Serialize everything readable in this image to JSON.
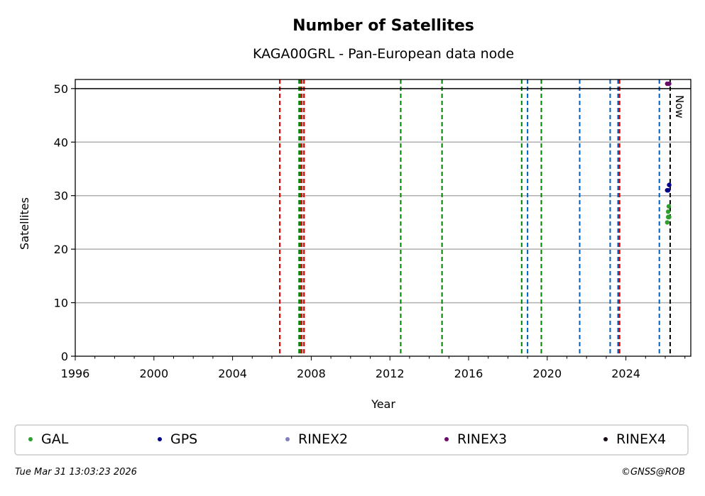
{
  "chart_data": {
    "type": "scatter",
    "title": "Number of Satellites",
    "subtitle": "KAGA00GRL - Pan-European data node",
    "xlabel": "Year",
    "ylabel": "Satellites",
    "xlim": [
      1996,
      2027.3
    ],
    "ylim": [
      0,
      51.7
    ],
    "xticks": [
      1996,
      2000,
      2004,
      2008,
      2012,
      2016,
      2020,
      2024
    ],
    "yticks": [
      0,
      10,
      20,
      30,
      40,
      50
    ],
    "grid": "y",
    "hline": 50,
    "now": {
      "x": 2026.25,
      "label": "Now"
    },
    "vlines": [
      {
        "x": 2006.4,
        "color": "#008000"
      },
      {
        "x": 2006.4,
        "color": "#e00000"
      },
      {
        "x": 2007.38,
        "color": "#008000"
      },
      {
        "x": 2007.45,
        "color": "#008000"
      },
      {
        "x": 2007.52,
        "color": "#e00000"
      },
      {
        "x": 2007.63,
        "color": "#008000"
      },
      {
        "x": 2007.63,
        "color": "#e00000"
      },
      {
        "x": 2012.55,
        "color": "#008000"
      },
      {
        "x": 2014.65,
        "color": "#008000"
      },
      {
        "x": 2018.7,
        "color": "#008000"
      },
      {
        "x": 2019.0,
        "color": "#0060c0"
      },
      {
        "x": 2019.7,
        "color": "#008000"
      },
      {
        "x": 2021.65,
        "color": "#0060c0"
      },
      {
        "x": 2023.2,
        "color": "#0060c0"
      },
      {
        "x": 2023.6,
        "color": "#0060c0"
      },
      {
        "x": 2023.65,
        "color": "#0060c0"
      },
      {
        "x": 2023.68,
        "color": "#e00000"
      },
      {
        "x": 2025.7,
        "color": "#0060c0"
      }
    ],
    "series": [
      {
        "name": "GAL",
        "color": "#2ca02c",
        "points": [
          [
            2026.1,
            25
          ],
          [
            2026.15,
            26
          ],
          [
            2026.2,
            26
          ],
          [
            2026.15,
            27
          ],
          [
            2026.18,
            28
          ]
        ]
      },
      {
        "name": "GPS",
        "color": "#00008b",
        "points": [
          [
            2026.1,
            31
          ],
          [
            2026.15,
            31
          ],
          [
            2026.2,
            32
          ]
        ]
      },
      {
        "name": "RINEX2",
        "color": "#8080c0",
        "points": []
      },
      {
        "name": "RINEX3",
        "color": "#6a0a6a",
        "points": [
          [
            2026.1,
            50.9
          ],
          [
            2026.2,
            50.9
          ]
        ]
      },
      {
        "name": "RINEX4",
        "color": "#1a0a1a",
        "points": []
      }
    ]
  },
  "footer": {
    "date": "Tue Mar 31 13:03:23 2026",
    "credit": "©GNSS@ROB"
  }
}
